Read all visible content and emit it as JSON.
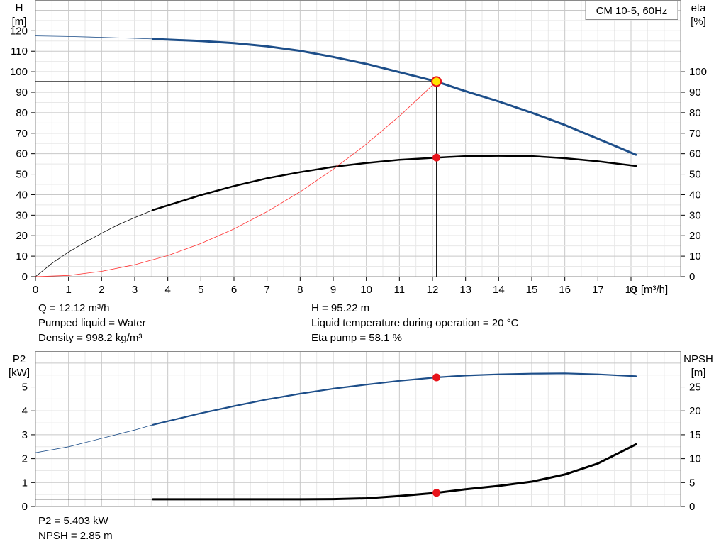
{
  "chart_data": [
    {
      "type": "line",
      "legend_box": "CM 10-5, 60Hz",
      "xlabel": "Q [m³/h]",
      "ylabel_left": [
        "H",
        "[m]"
      ],
      "ylabel_right": [
        "eta",
        "[%]"
      ],
      "xlim": [
        0,
        19.5
      ],
      "ylim_left": [
        0,
        135
      ],
      "ylim_right": [
        0,
        135
      ],
      "x_ticks": [
        0,
        1,
        2,
        3,
        4,
        5,
        6,
        7,
        8,
        9,
        10,
        11,
        12,
        13,
        14,
        15,
        16,
        17,
        18
      ],
      "y_ticks_left": [
        0,
        10,
        20,
        30,
        40,
        50,
        60,
        70,
        80,
        90,
        100,
        110,
        120
      ],
      "y_ticks_right": [
        0,
        10,
        20,
        30,
        40,
        50,
        60,
        70,
        80,
        90,
        100
      ],
      "grid": true,
      "series": [
        {
          "key": "H_ext",
          "color": "#1d4e89",
          "width": 0.8,
          "x": [
            0,
            1,
            2,
            3,
            3.55
          ],
          "y": [
            117.5,
            117.2,
            116.8,
            116.3,
            116.0
          ]
        },
        {
          "key": "H",
          "color": "#1d4e89",
          "width": 3,
          "x": [
            3.55,
            5,
            6,
            7,
            8,
            9,
            10,
            11,
            12.12,
            13,
            14,
            15,
            16,
            17,
            18.15
          ],
          "y": [
            116.0,
            115.0,
            114.0,
            112.4,
            110.2,
            107.2,
            103.8,
            99.8,
            95.22,
            90.5,
            85.5,
            80.0,
            74.0,
            67.3,
            59.5
          ]
        },
        {
          "key": "eta_ext",
          "color": "#000000",
          "width": 0.8,
          "x": [
            0,
            0.5,
            1,
            1.5,
            2,
            2.5,
            3,
            3.55
          ],
          "y": [
            0,
            6.5,
            12.0,
            16.8,
            21.2,
            25.3,
            28.8,
            32.5
          ]
        },
        {
          "key": "eta",
          "color": "#000000",
          "width": 2.5,
          "x": [
            3.55,
            5,
            6,
            7,
            8,
            9,
            10,
            11,
            12.12,
            13,
            14,
            15,
            16,
            17,
            18.15
          ],
          "y": [
            32.5,
            39.8,
            44.2,
            48.0,
            51.0,
            53.6,
            55.5,
            57.0,
            58.1,
            58.8,
            59.0,
            58.8,
            57.8,
            56.3,
            54.0
          ]
        },
        {
          "key": "system",
          "color": "#ff3030",
          "width": 0.8,
          "x": [
            0,
            1,
            2,
            3,
            4,
            5,
            6,
            7,
            8,
            9,
            10,
            11,
            12.12
          ],
          "y": [
            0,
            0.6,
            2.6,
            5.8,
            10.3,
            16.2,
            23.3,
            31.7,
            41.4,
            52.4,
            64.7,
            78.3,
            95.22
          ]
        }
      ],
      "duty_point": {
        "x": 12.12,
        "y": 95.22
      },
      "eta_point": {
        "x": 12.12,
        "y": 58.1
      }
    },
    {
      "type": "line",
      "ylabel_left": [
        "P2",
        "[kW]"
      ],
      "ylabel_right": [
        "NPSH",
        "[m]"
      ],
      "xlim": [
        0,
        19.5
      ],
      "ylim_left": [
        0,
        6.5
      ],
      "ylim_right": [
        0,
        32.5
      ],
      "y_ticks_left": [
        0,
        1,
        2,
        3,
        4,
        5
      ],
      "y_ticks_right": [
        0,
        5,
        10,
        15,
        20,
        25
      ],
      "grid": true,
      "series": [
        {
          "key": "P2_ext",
          "color": "#1d4e89",
          "width": 0.8,
          "axis": "left",
          "x": [
            0,
            1,
            2,
            3,
            3.55
          ],
          "y": [
            2.25,
            2.5,
            2.85,
            3.2,
            3.42
          ]
        },
        {
          "key": "P2",
          "color": "#1d4e89",
          "width": 2.2,
          "axis": "left",
          "x": [
            3.55,
            5,
            6,
            7,
            8,
            9,
            10,
            11,
            12.12,
            13,
            14,
            15,
            16,
            17,
            18.15
          ],
          "y": [
            3.42,
            3.9,
            4.2,
            4.48,
            4.72,
            4.93,
            5.1,
            5.26,
            5.403,
            5.48,
            5.53,
            5.56,
            5.57,
            5.53,
            5.45
          ]
        },
        {
          "key": "NPSH_ext",
          "color": "#000000",
          "width": 0.8,
          "axis": "right",
          "x": [
            0,
            3.55
          ],
          "y": [
            1.5,
            1.5
          ]
        },
        {
          "key": "NPSH",
          "color": "#000000",
          "width": 3,
          "axis": "right",
          "x": [
            3.55,
            5,
            6,
            7,
            8,
            9,
            10,
            11,
            12.12,
            13,
            14,
            15,
            16,
            17,
            18.15
          ],
          "y": [
            1.5,
            1.5,
            1.5,
            1.5,
            1.5,
            1.55,
            1.7,
            2.2,
            2.85,
            3.6,
            4.3,
            5.2,
            6.7,
            9.0,
            13.0
          ]
        }
      ],
      "p2_point": {
        "x": 12.12,
        "y": 5.403
      },
      "npsh_point": {
        "x": 12.12,
        "y": 2.85
      }
    }
  ],
  "info": {
    "q": "Q = 12.12 m³/h",
    "liquid": "Pumped liquid = Water",
    "density": "Density = 998.2 kg/m³",
    "h": "H = 95.22 m",
    "temp": "Liquid temperature during operation = 20 °C",
    "eta": "Eta pump = 58.1 %",
    "p2": "P2 = 5.403 kW",
    "npsh": "NPSH = 2.85 m"
  }
}
